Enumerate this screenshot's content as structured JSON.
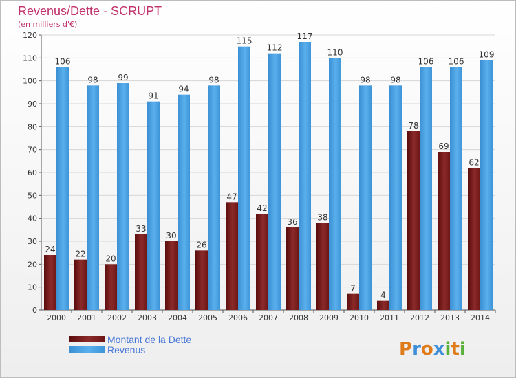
{
  "chart_data": {
    "type": "bar",
    "title": "Revenus/Dette - SCRUPT",
    "subtitle": "(en milliers d'€)",
    "categories": [
      "2000",
      "2001",
      "2002",
      "2003",
      "2004",
      "2005",
      "2006",
      "2007",
      "2008",
      "2009",
      "2010",
      "2011",
      "2012",
      "2013",
      "2014"
    ],
    "series": [
      {
        "name": "Montant de la Dette",
        "color": "#7a1f1f",
        "values": [
          24,
          22,
          20,
          33,
          30,
          26,
          47,
          42,
          36,
          38,
          7,
          4,
          78,
          69,
          62
        ]
      },
      {
        "name": "Revenus",
        "color": "#4aa0e0",
        "values": [
          106,
          98,
          99,
          91,
          94,
          98,
          115,
          112,
          117,
          110,
          98,
          98,
          106,
          106,
          109
        ]
      }
    ],
    "ylim": [
      0,
      120
    ],
    "yticks": [
      0,
      10,
      20,
      30,
      40,
      50,
      60,
      70,
      80,
      90,
      100,
      110,
      120
    ],
    "grid": true,
    "legend_position": "bottom-left",
    "title_color": "#c0306a"
  },
  "logo": {
    "text": "Proxiti"
  }
}
